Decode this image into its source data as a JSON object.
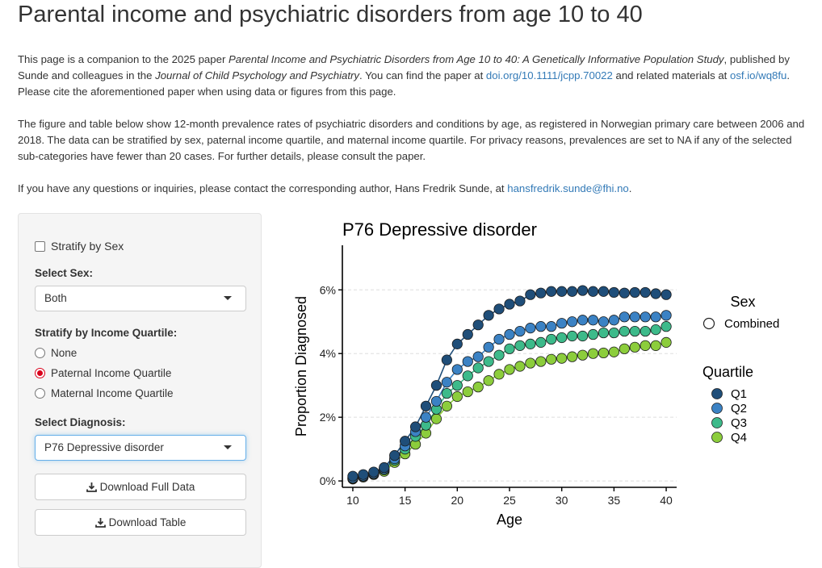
{
  "page_title": "Parental income and psychiatric disorders from age 10 to 40",
  "intro": {
    "t1": "This page is a companion to the 2025 paper ",
    "paper_title": "Parental Income and Psychiatric Disorders from Age 10 to 40: A Genetically Informative Population Study",
    "t2": ", published by Sunde and colleagues in the ",
    "journal": "Journal of Child Psychology and Psychiatry",
    "t3": ". You can find the paper at ",
    "doi_link": "doi.org/10.1111/jcpp.70022",
    "t4": " and related materials at ",
    "osf_link": "osf.io/wq8fu",
    "t5": ". Please cite the aforementioned paper when using data or figures from this page."
  },
  "description": "The figure and table below show 12-month prevalence rates of psychiatric disorders and conditions by age, as registered in Norwegian primary care between 2006 and 2018. The data can be stratified by sex, paternal income quartile, and maternal income quartile. For privacy reasons, prevalences are set to NA if any of the selected sub-categories have fewer than 20 cases. For further details, please consult the paper.",
  "contact": {
    "text": "If you have any questions or inquiries, please contact the corresponding author, Hans Fredrik Sunde, at ",
    "email": "hansfredrik.sunde@fhi.no",
    "end": "."
  },
  "sidebar": {
    "stratify_sex_label": "Stratify by Sex",
    "stratify_sex_checked": false,
    "select_sex_label": "Select Sex:",
    "select_sex_value": "Both",
    "income_label": "Stratify by Income Quartile:",
    "income_options": [
      "None",
      "Paternal Income Quartile",
      "Maternal Income Quartile"
    ],
    "income_selected": "Paternal Income Quartile",
    "diagnosis_label": "Select Diagnosis:",
    "diagnosis_value": "P76 Depressive disorder",
    "download_full_label": "Download Full Data",
    "download_table_label": "Download Table"
  },
  "colors": {
    "Q1": "#1f4e79",
    "Q2": "#3b82c4",
    "Q3": "#3dba8a",
    "Q4": "#8ccd3c",
    "link": "#337ab7"
  },
  "chart_data": {
    "type": "line",
    "title": "P76 Depressive disorder",
    "xlabel": "Age",
    "ylabel": "Proportion Diagnosed",
    "xlim": [
      9,
      41
    ],
    "ylim": [
      -0.2,
      7.4
    ],
    "xticks": [
      10,
      15,
      20,
      25,
      30,
      35,
      40
    ],
    "yticks": [
      0,
      2,
      4,
      6
    ],
    "ytick_labels": [
      "0%",
      "2%",
      "4%",
      "6%"
    ],
    "grid": true,
    "legend": {
      "position": "right",
      "sex_title": "Sex",
      "sex_entries": [
        "Combined"
      ],
      "quartile_title": "Quartile",
      "quartile_entries": [
        "Q1",
        "Q2",
        "Q3",
        "Q4"
      ]
    },
    "x": [
      10,
      11,
      12,
      13,
      14,
      15,
      16,
      17,
      18,
      19,
      20,
      21,
      22,
      23,
      24,
      25,
      26,
      27,
      28,
      29,
      30,
      31,
      32,
      33,
      34,
      35,
      36,
      37,
      38,
      39,
      40
    ],
    "series": [
      {
        "name": "Q1",
        "values": [
          0.15,
          0.2,
          0.28,
          0.42,
          0.8,
          1.25,
          1.7,
          2.35,
          3.0,
          3.8,
          4.3,
          4.6,
          4.9,
          5.2,
          5.4,
          5.55,
          5.65,
          5.85,
          5.9,
          5.95,
          5.95,
          5.95,
          5.98,
          5.95,
          5.95,
          5.92,
          5.9,
          5.92,
          5.92,
          5.88,
          5.85
        ]
      },
      {
        "name": "Q2",
        "values": [
          0.1,
          0.16,
          0.24,
          0.38,
          0.7,
          1.1,
          1.55,
          2.0,
          2.5,
          3.1,
          3.5,
          3.75,
          3.9,
          4.2,
          4.45,
          4.6,
          4.7,
          4.8,
          4.85,
          4.85,
          4.95,
          5.0,
          5.05,
          5.05,
          5.0,
          5.05,
          5.15,
          5.15,
          5.15,
          5.15,
          5.2
        ]
      },
      {
        "name": "Q3",
        "values": [
          0.08,
          0.14,
          0.22,
          0.35,
          0.65,
          1.0,
          1.4,
          1.75,
          2.25,
          2.75,
          3.0,
          3.3,
          3.55,
          3.75,
          3.95,
          4.15,
          4.25,
          4.3,
          4.35,
          4.45,
          4.5,
          4.55,
          4.55,
          4.6,
          4.65,
          4.65,
          4.7,
          4.7,
          4.7,
          4.75,
          4.85
        ]
      },
      {
        "name": "Q4",
        "values": [
          0.06,
          0.12,
          0.2,
          0.3,
          0.58,
          0.85,
          1.15,
          1.5,
          1.95,
          2.35,
          2.65,
          2.8,
          2.95,
          3.15,
          3.35,
          3.5,
          3.6,
          3.7,
          3.75,
          3.82,
          3.85,
          3.9,
          3.95,
          4.0,
          4.02,
          4.05,
          4.15,
          4.2,
          4.25,
          4.25,
          4.35
        ]
      }
    ]
  }
}
